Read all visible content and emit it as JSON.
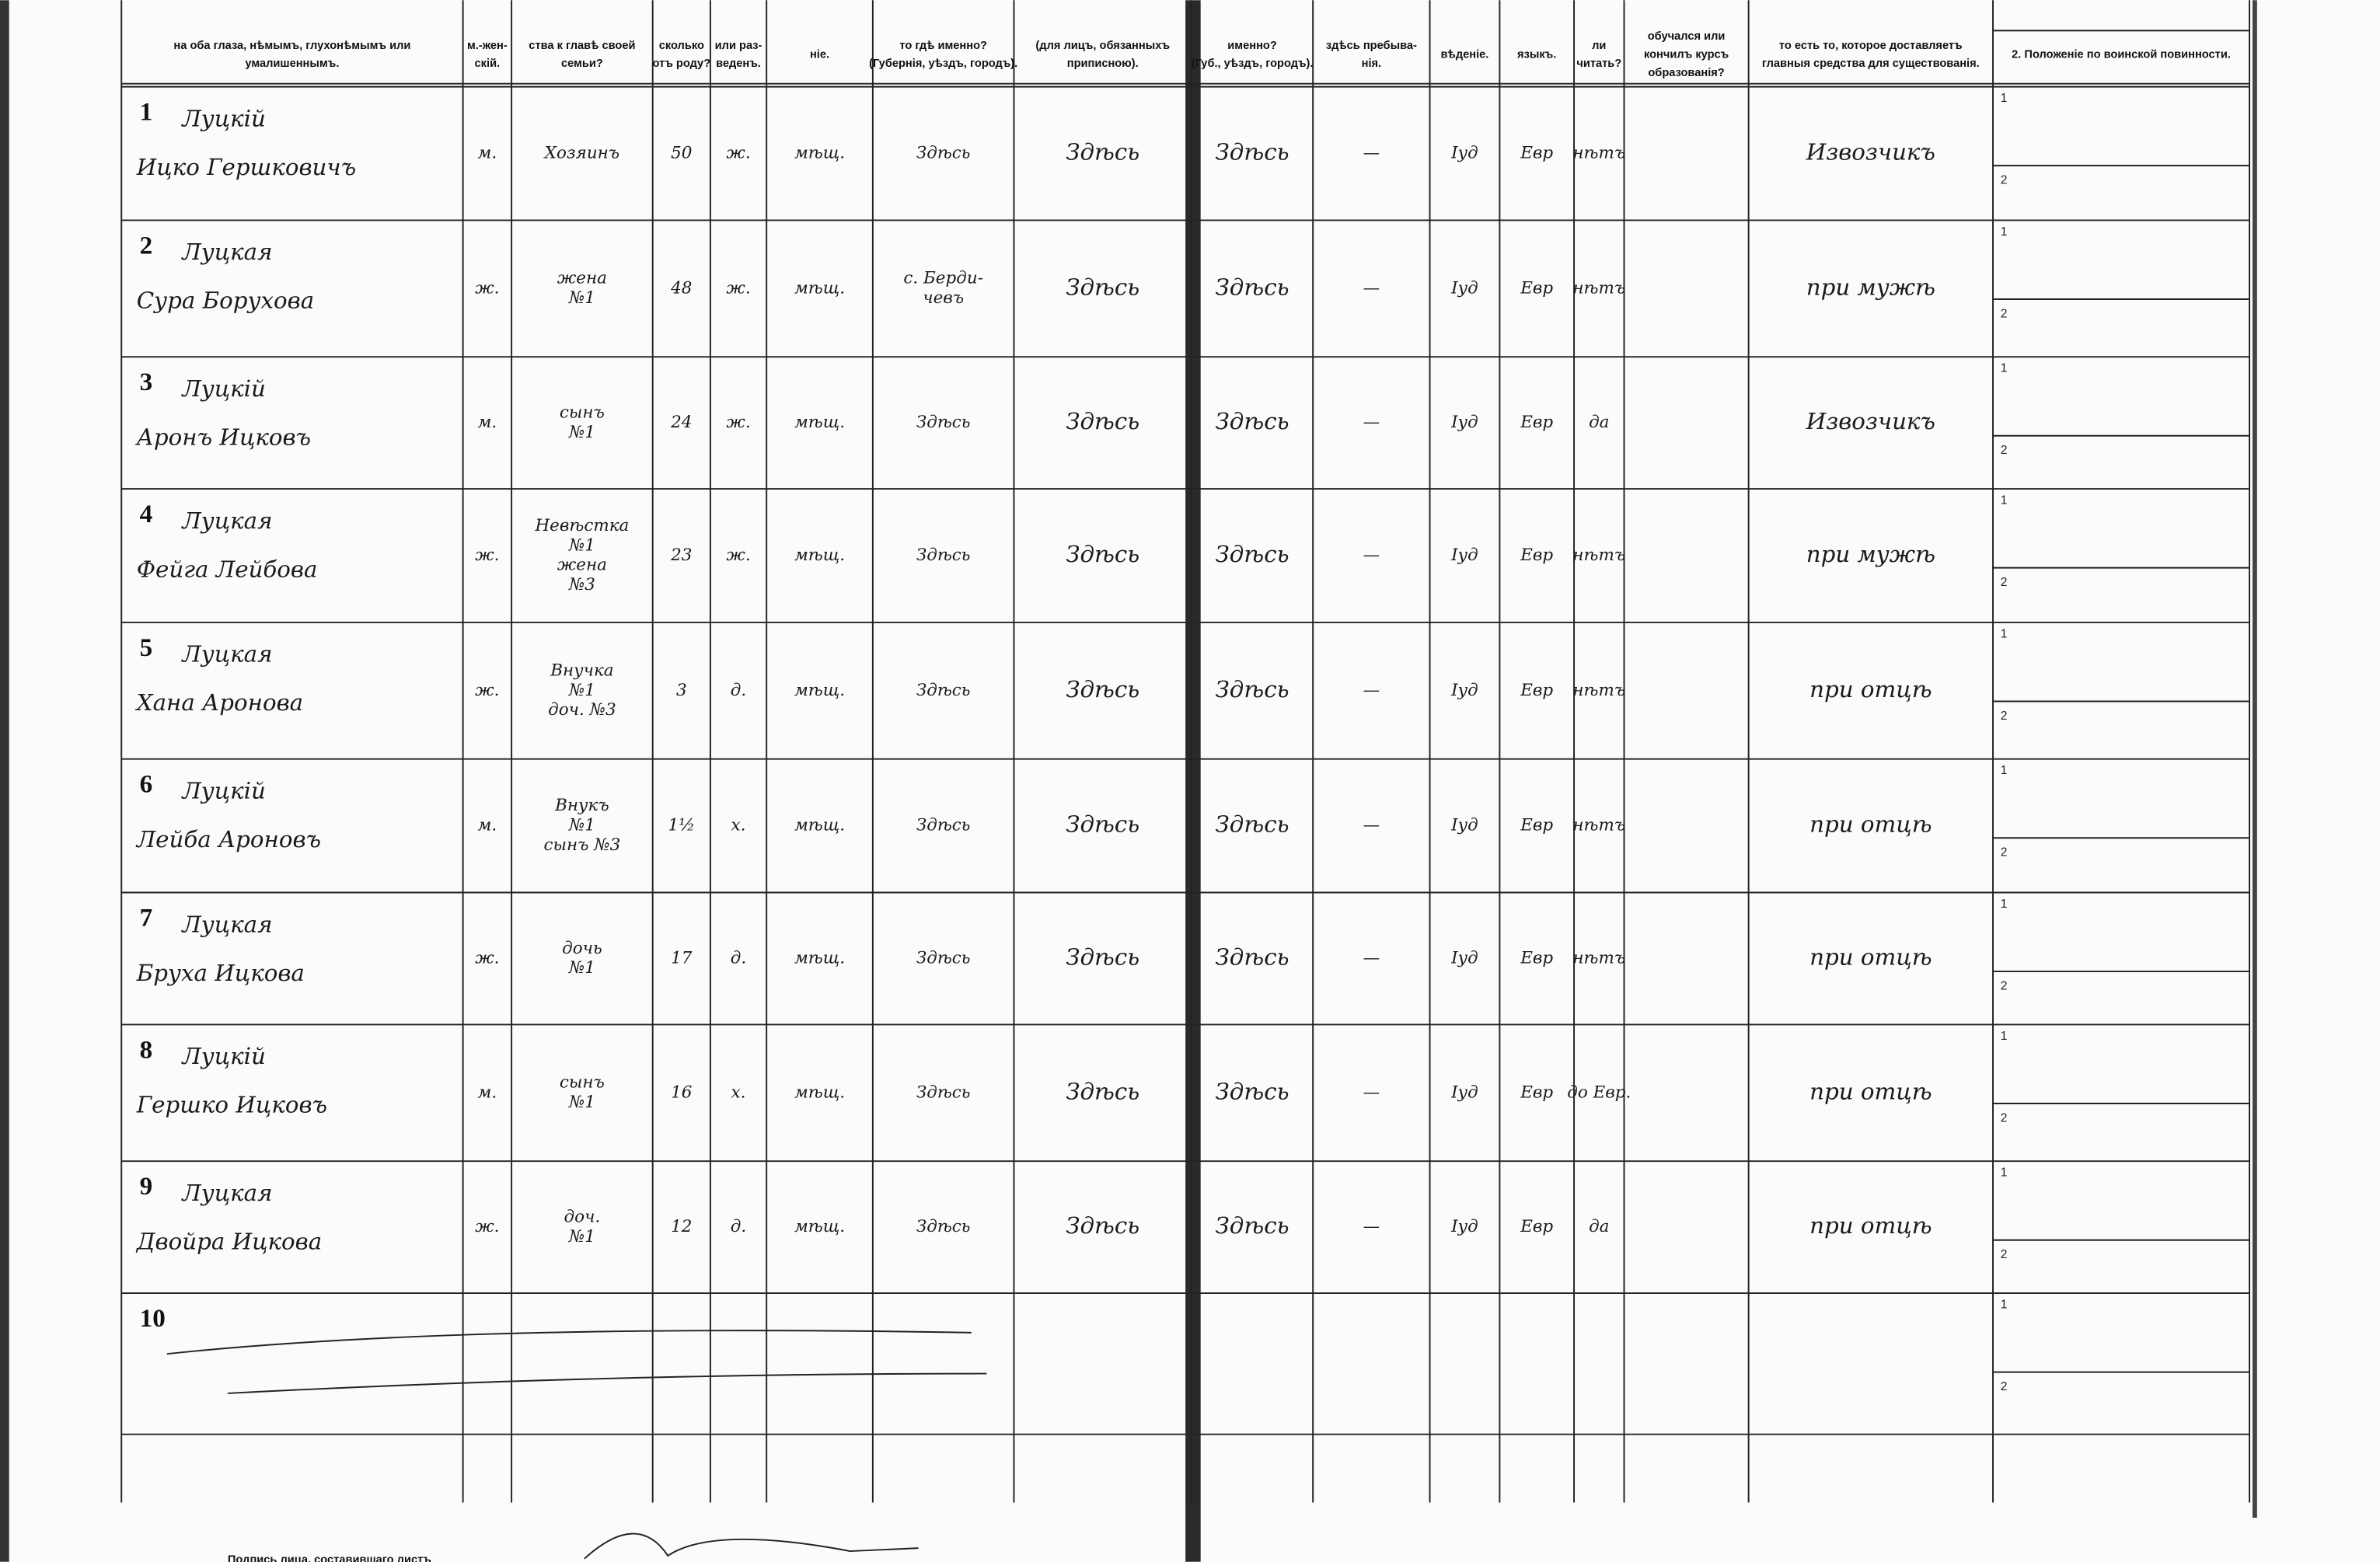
{
  "header": {
    "columns": [
      [
        "на оба глаза, нѣмымъ, глухонѣмымъ или",
        "умалишеннымъ."
      ],
      [
        "м.-жен-",
        "скій."
      ],
      [
        "ства к главѣ своей",
        "семьи?"
      ],
      [
        "сколько",
        "отъ роду?"
      ],
      [
        "или раз-",
        "веденъ."
      ],
      [
        "ніе."
      ],
      [
        "то гдѣ именно?",
        "(Губернія, уѣздъ, городъ)."
      ],
      [
        "(для лицъ, обязанныхъ",
        "приписною)."
      ],
      [
        "именно?",
        "(Губ., уѣздъ, городъ)."
      ],
      [
        "здѣсь пребыва-",
        "нія."
      ],
      [
        "вѣденіе."
      ],
      [
        "языкъ."
      ],
      [
        "ли",
        "читать?"
      ],
      [
        "обучался или",
        "кончилъ курсъ",
        "образованія?"
      ],
      [
        "то есть то, которое доставляетъ",
        "главныя средства для существованія."
      ],
      [
        "2. Положеніе по воинской повинности."
      ]
    ]
  },
  "military_labels": [
    "1",
    "2"
  ],
  "rows": [
    {
      "num": "1",
      "surname": "Луцкій",
      "name": "Ицко Гершковичъ",
      "sex": "м.",
      "relation": [
        "Хозяинъ"
      ],
      "age": "50",
      "marital": "ж.",
      "estate": "мѣщ.",
      "birthplace": [
        "Здѣсь"
      ],
      "registered": "Здѣсь",
      "residence": "Здѣсь",
      "absence": "—",
      "religion": "Іуд",
      "language": "Евр",
      "literacy": "нѣтъ",
      "occupation": "Извозчикъ"
    },
    {
      "num": "2",
      "surname": "Луцкая",
      "name": "Сура Борухова",
      "sex": "ж.",
      "relation": [
        "жена",
        "№1"
      ],
      "age": "48",
      "marital": "ж.",
      "estate": "мѣщ.",
      "birthplace": [
        "с. Берди-",
        "чевъ"
      ],
      "registered": "Здѣсь",
      "residence": "Здѣсь",
      "absence": "—",
      "religion": "Іуд",
      "language": "Евр",
      "literacy": "нѣтъ",
      "occupation": "при мужѣ"
    },
    {
      "num": "3",
      "surname": "Луцкій",
      "name": "Аронъ Ицковъ",
      "sex": "м.",
      "relation": [
        "сынъ",
        "№1"
      ],
      "age": "24",
      "marital": "ж.",
      "estate": "мѣщ.",
      "birthplace": [
        "Здѣсь"
      ],
      "registered": "Здѣсь",
      "residence": "Здѣсь",
      "absence": "—",
      "religion": "Іуд",
      "language": "Евр",
      "literacy": "да",
      "occupation": "Извозчикъ"
    },
    {
      "num": "4",
      "surname": "Луцкая",
      "name": "Фейга Лейбова",
      "sex": "ж.",
      "relation": [
        "Невѣстка",
        "№1",
        "жена",
        "№3"
      ],
      "age": "23",
      "marital": "ж.",
      "estate": "мѣщ.",
      "birthplace": [
        "Здѣсь"
      ],
      "registered": "Здѣсь",
      "residence": "Здѣсь",
      "absence": "—",
      "religion": "Іуд",
      "language": "Евр",
      "literacy": "нѣтъ",
      "occupation": "при мужѣ"
    },
    {
      "num": "5",
      "surname": "Луцкая",
      "name": "Хана Аронова",
      "sex": "ж.",
      "relation": [
        "Внучка",
        "№1",
        "доч. №3"
      ],
      "age": "3",
      "marital": "д.",
      "estate": "мѣщ.",
      "birthplace": [
        "Здѣсь"
      ],
      "registered": "Здѣсь",
      "residence": "Здѣсь",
      "absence": "—",
      "religion": "Іуд",
      "language": "Евр",
      "literacy": "нѣтъ",
      "occupation": "при отцѣ"
    },
    {
      "num": "6",
      "surname": "Луцкій",
      "name": "Лейба Ароновъ",
      "sex": "м.",
      "relation": [
        "Внукъ",
        "№1",
        "сынъ №3"
      ],
      "age": "1½",
      "marital": "х.",
      "estate": "мѣщ.",
      "birthplace": [
        "Здѣсь"
      ],
      "registered": "Здѣсь",
      "residence": "Здѣсь",
      "absence": "—",
      "religion": "Іуд",
      "language": "Евр",
      "literacy": "нѣтъ",
      "occupation": "при отцѣ"
    },
    {
      "num": "7",
      "surname": "Луцкая",
      "name": "Бруха Ицкова",
      "sex": "ж.",
      "relation": [
        "дочь",
        "№1"
      ],
      "age": "17",
      "marital": "д.",
      "estate": "мѣщ.",
      "birthplace": [
        "Здѣсь"
      ],
      "registered": "Здѣсь",
      "residence": "Здѣсь",
      "absence": "—",
      "religion": "Іуд",
      "language": "Евр",
      "literacy": "нѣтъ",
      "occupation": "при отцѣ"
    },
    {
      "num": "8",
      "surname": "Луцкій",
      "name": "Гершко Ицковъ",
      "sex": "м.",
      "relation": [
        "сынъ",
        "№1"
      ],
      "age": "16",
      "marital": "х.",
      "estate": "мѣщ.",
      "birthplace": [
        "Здѣсь"
      ],
      "registered": "Здѣсь",
      "residence": "Здѣсь",
      "absence": "—",
      "religion": "Іуд",
      "language": "Евр",
      "literacy": "до Евр.",
      "occupation": "при отцѣ"
    },
    {
      "num": "9",
      "surname": "Луцкая",
      "name": "Двойра Ицкова",
      "sex": "ж.",
      "relation": [
        "доч.",
        "№1"
      ],
      "age": "12",
      "marital": "д.",
      "estate": "мѣщ.",
      "birthplace": [
        "Здѣсь"
      ],
      "registered": "Здѣсь",
      "residence": "Здѣсь",
      "absence": "—",
      "religion": "Іуд",
      "language": "Евр",
      "literacy": "да",
      "occupation": "при отцѣ"
    },
    {
      "num": "10"
    }
  ],
  "footer": {
    "signature_label": "Подпись лица, составившаго листъ"
  }
}
